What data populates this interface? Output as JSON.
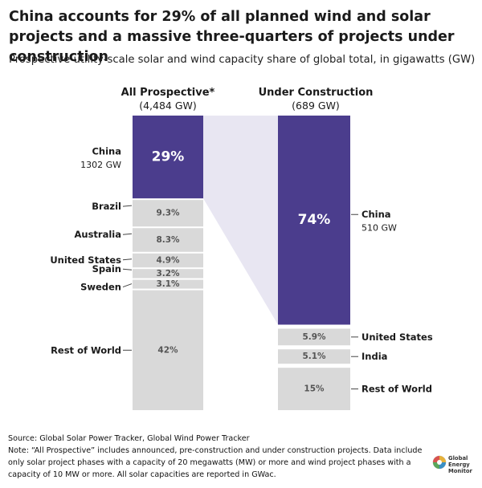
{
  "title": "China accounts for 29% of all planned wind and solar projects and a massive three-quarters of projects under construction",
  "subtitle": "Prospective utility-scale solar and wind capacity share of global total, in gigawatts (GW)",
  "footer": {
    "source": "Source: Global Solar Power Tracker, Global Wind Power Tracker",
    "note_line1": "Note: “All Prospective” includes announced, pre-construction and under construction projects. Data include",
    "note_line2": "only solar project phases with a capacity of 20 megawatts (MW) or more and wind project phases with a",
    "note_line3": "capacity of 10 MW or more. All solar capacities are reported in GWac."
  },
  "logo": {
    "line1": "Global",
    "line2": "Energy",
    "line3": "Monitor"
  },
  "colors": {
    "china": "#4b3d8d",
    "other": "#d9d9d9",
    "connector": "#e8e6f2",
    "text_on_other": "#555555"
  },
  "chart_data": {
    "type": "bar",
    "stacked": "100%",
    "columns": [
      {
        "header": "All Prospective*",
        "total": "(4,484 GW)",
        "segments": [
          {
            "name": "China",
            "value": 29,
            "label": "29%",
            "sublabel": "1302 GW"
          },
          {
            "name": "Brazil",
            "value": 9.3,
            "label": "9.3%"
          },
          {
            "name": "Australia",
            "value": 8.3,
            "label": "8.3%"
          },
          {
            "name": "United States",
            "value": 4.9,
            "label": "4.9%"
          },
          {
            "name": "Spain",
            "value": 3.2,
            "label": "3.2%"
          },
          {
            "name": "Sweden",
            "value": 3.1,
            "label": "3.1%"
          },
          {
            "name": "Rest of World",
            "value": 42,
            "label": "42%"
          }
        ]
      },
      {
        "header": "Under Construction",
        "total": "(689 GW)",
        "segments": [
          {
            "name": "China",
            "value": 74,
            "label": "74%",
            "sublabel": "510 GW"
          },
          {
            "name": "United States",
            "value": 5.9,
            "label": "5.9%"
          },
          {
            "name": "India",
            "value": 5.1,
            "label": "5.1%"
          },
          {
            "name": "Rest of World",
            "value": 15,
            "label": "15%"
          }
        ]
      }
    ]
  }
}
